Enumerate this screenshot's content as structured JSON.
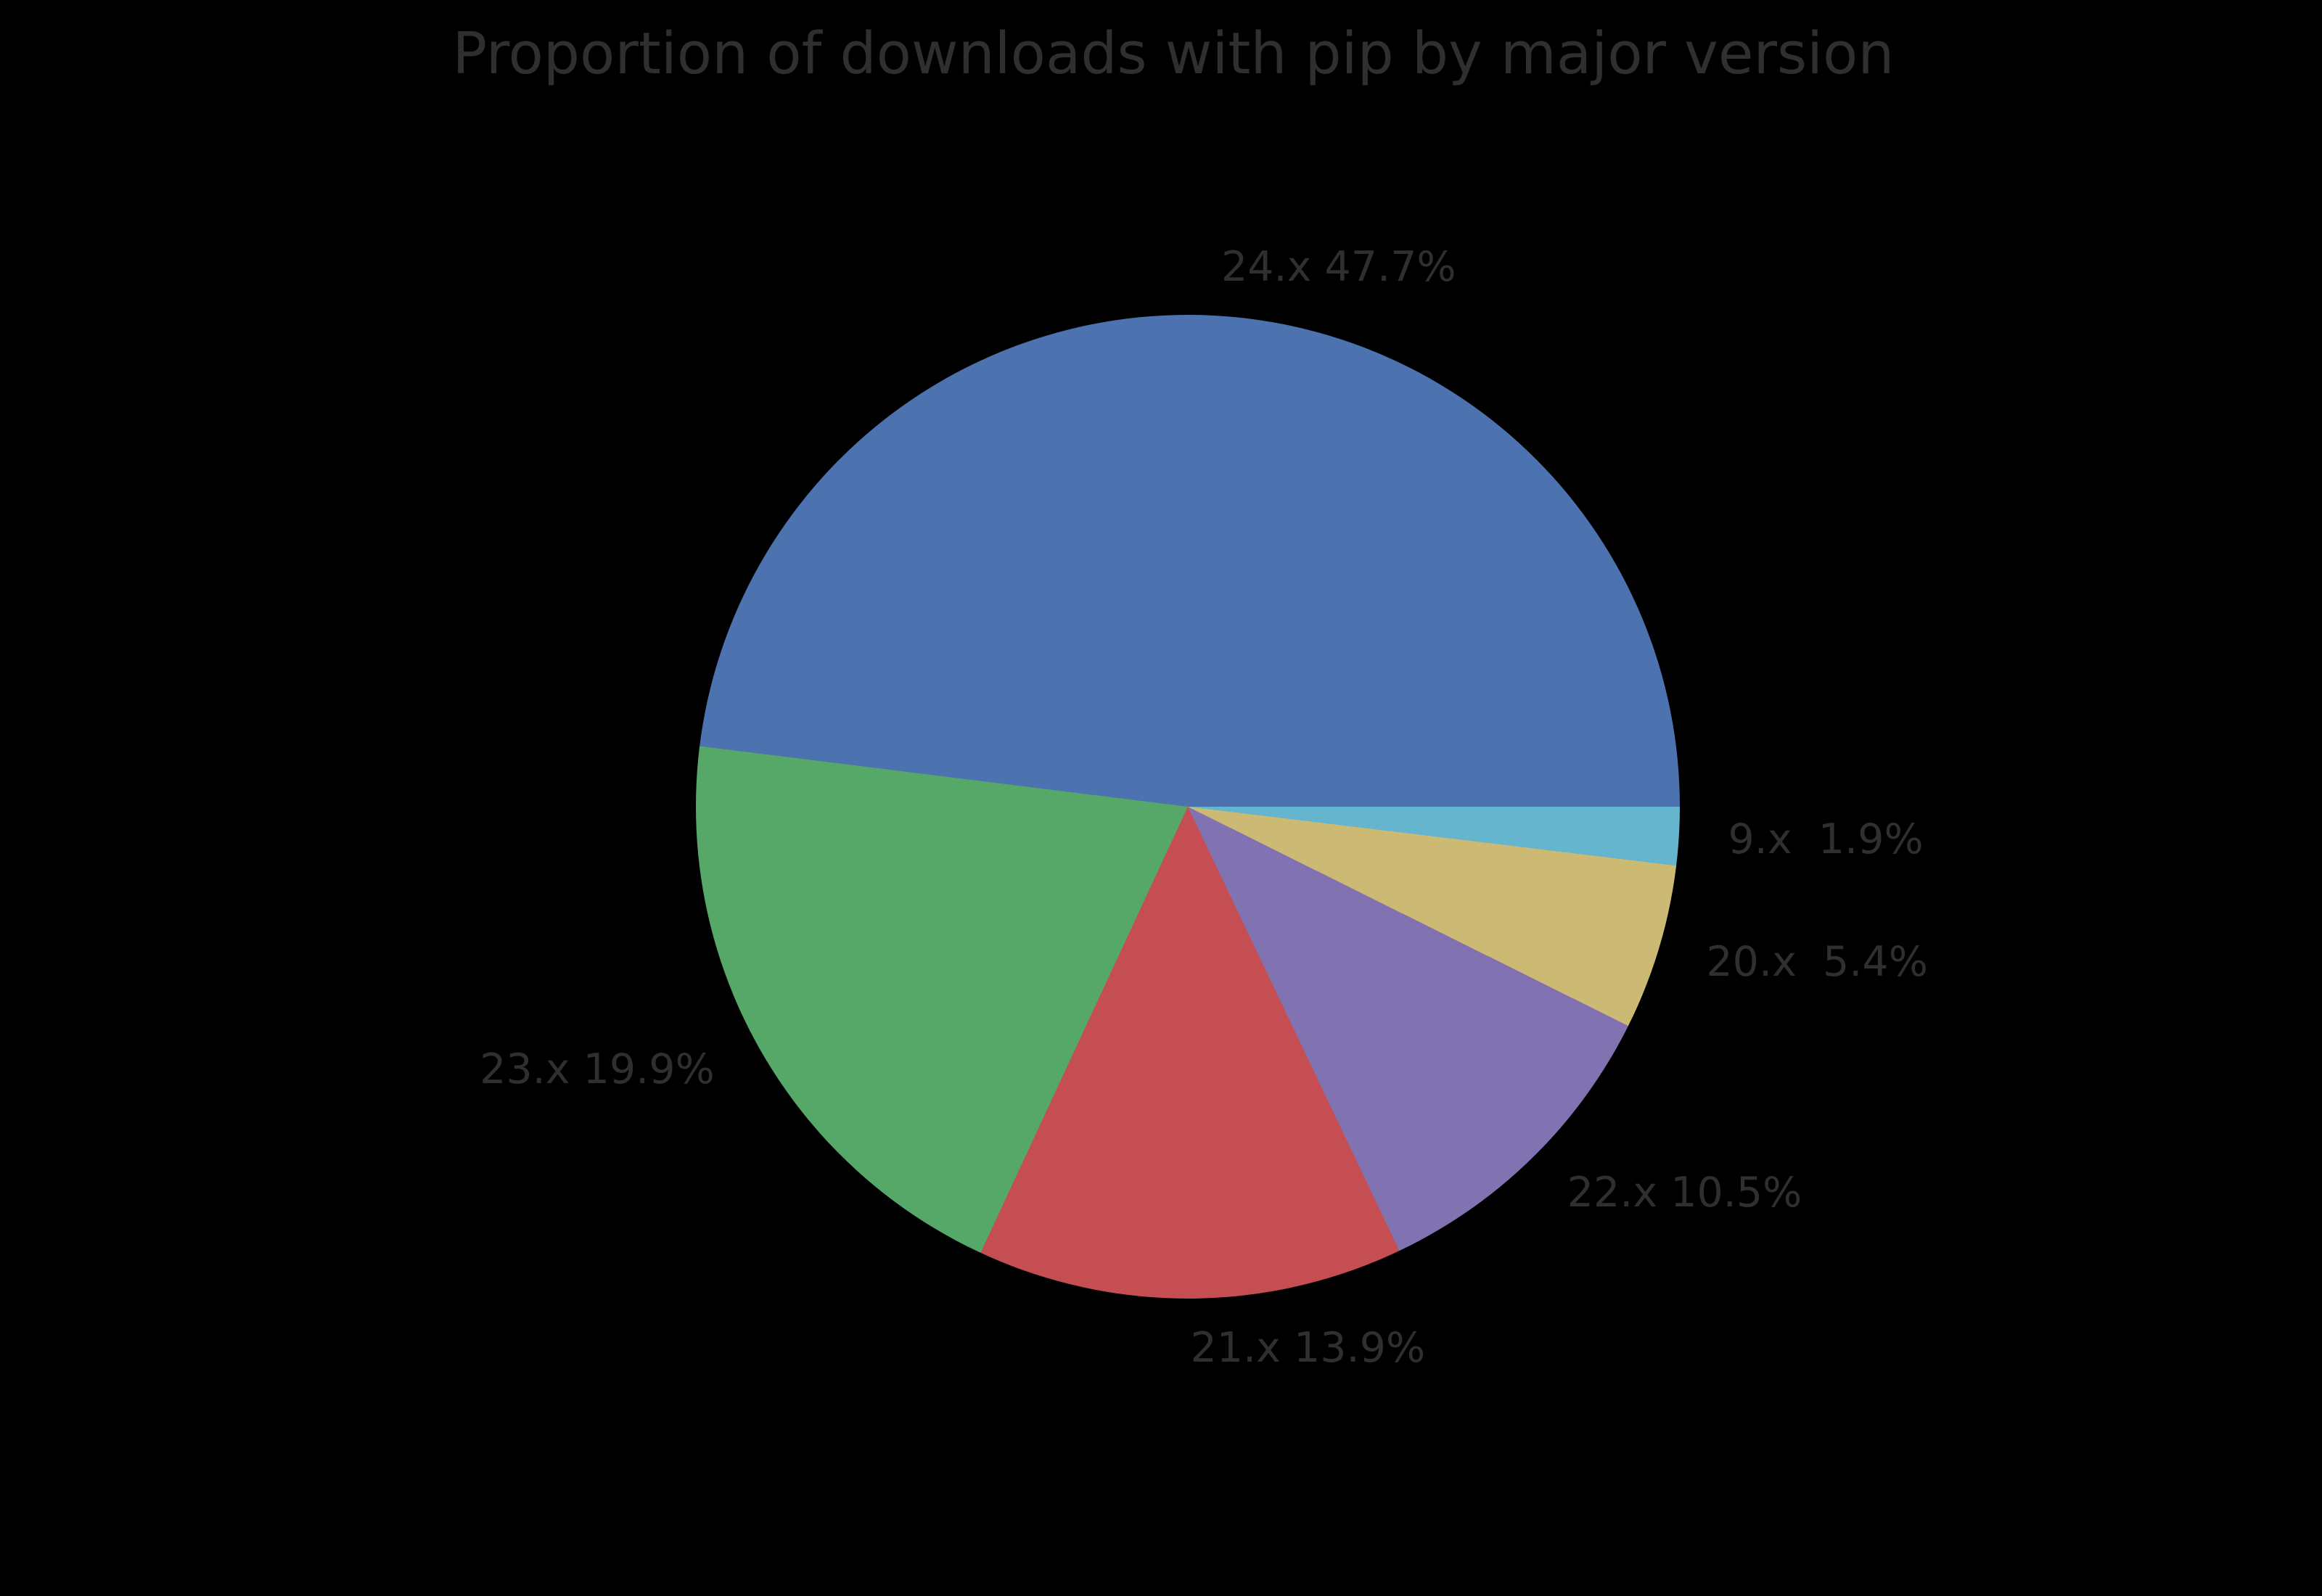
{
  "background_color": "#000000",
  "text_color": "#2f2f2f",
  "chart_data": {
    "type": "pie",
    "title": "Proportion of downloads with pip by major version",
    "direction": "counterclockwise",
    "start_angle_deg": 0,
    "label_distance": 1.1,
    "legend": "none",
    "values_unit": "%",
    "categories": [
      "24.x",
      "23.x",
      "21.x",
      "22.x",
      "20.x",
      "9.x"
    ],
    "values": [
      47.7,
      19.9,
      13.9,
      10.5,
      5.4,
      1.9
    ],
    "slices": [
      {
        "label": "24.x",
        "value": 47.7,
        "display": "24.x 47.7%",
        "color": "#4c72b0"
      },
      {
        "label": "23.x",
        "value": 19.9,
        "display": "23.x 19.9%",
        "color": "#55a868"
      },
      {
        "label": "21.x",
        "value": 13.9,
        "display": "21.x 13.9%",
        "color": "#c44e52"
      },
      {
        "label": "22.x",
        "value": 10.5,
        "display": "22.x 10.5%",
        "color": "#8172b2"
      },
      {
        "label": "20.x",
        "value": 5.4,
        "display": "20.x  5.4%",
        "color": "#ccb974"
      },
      {
        "label": "9.x",
        "value": 1.9,
        "display": "9.x  1.9%",
        "color": "#64b5cd"
      }
    ]
  }
}
